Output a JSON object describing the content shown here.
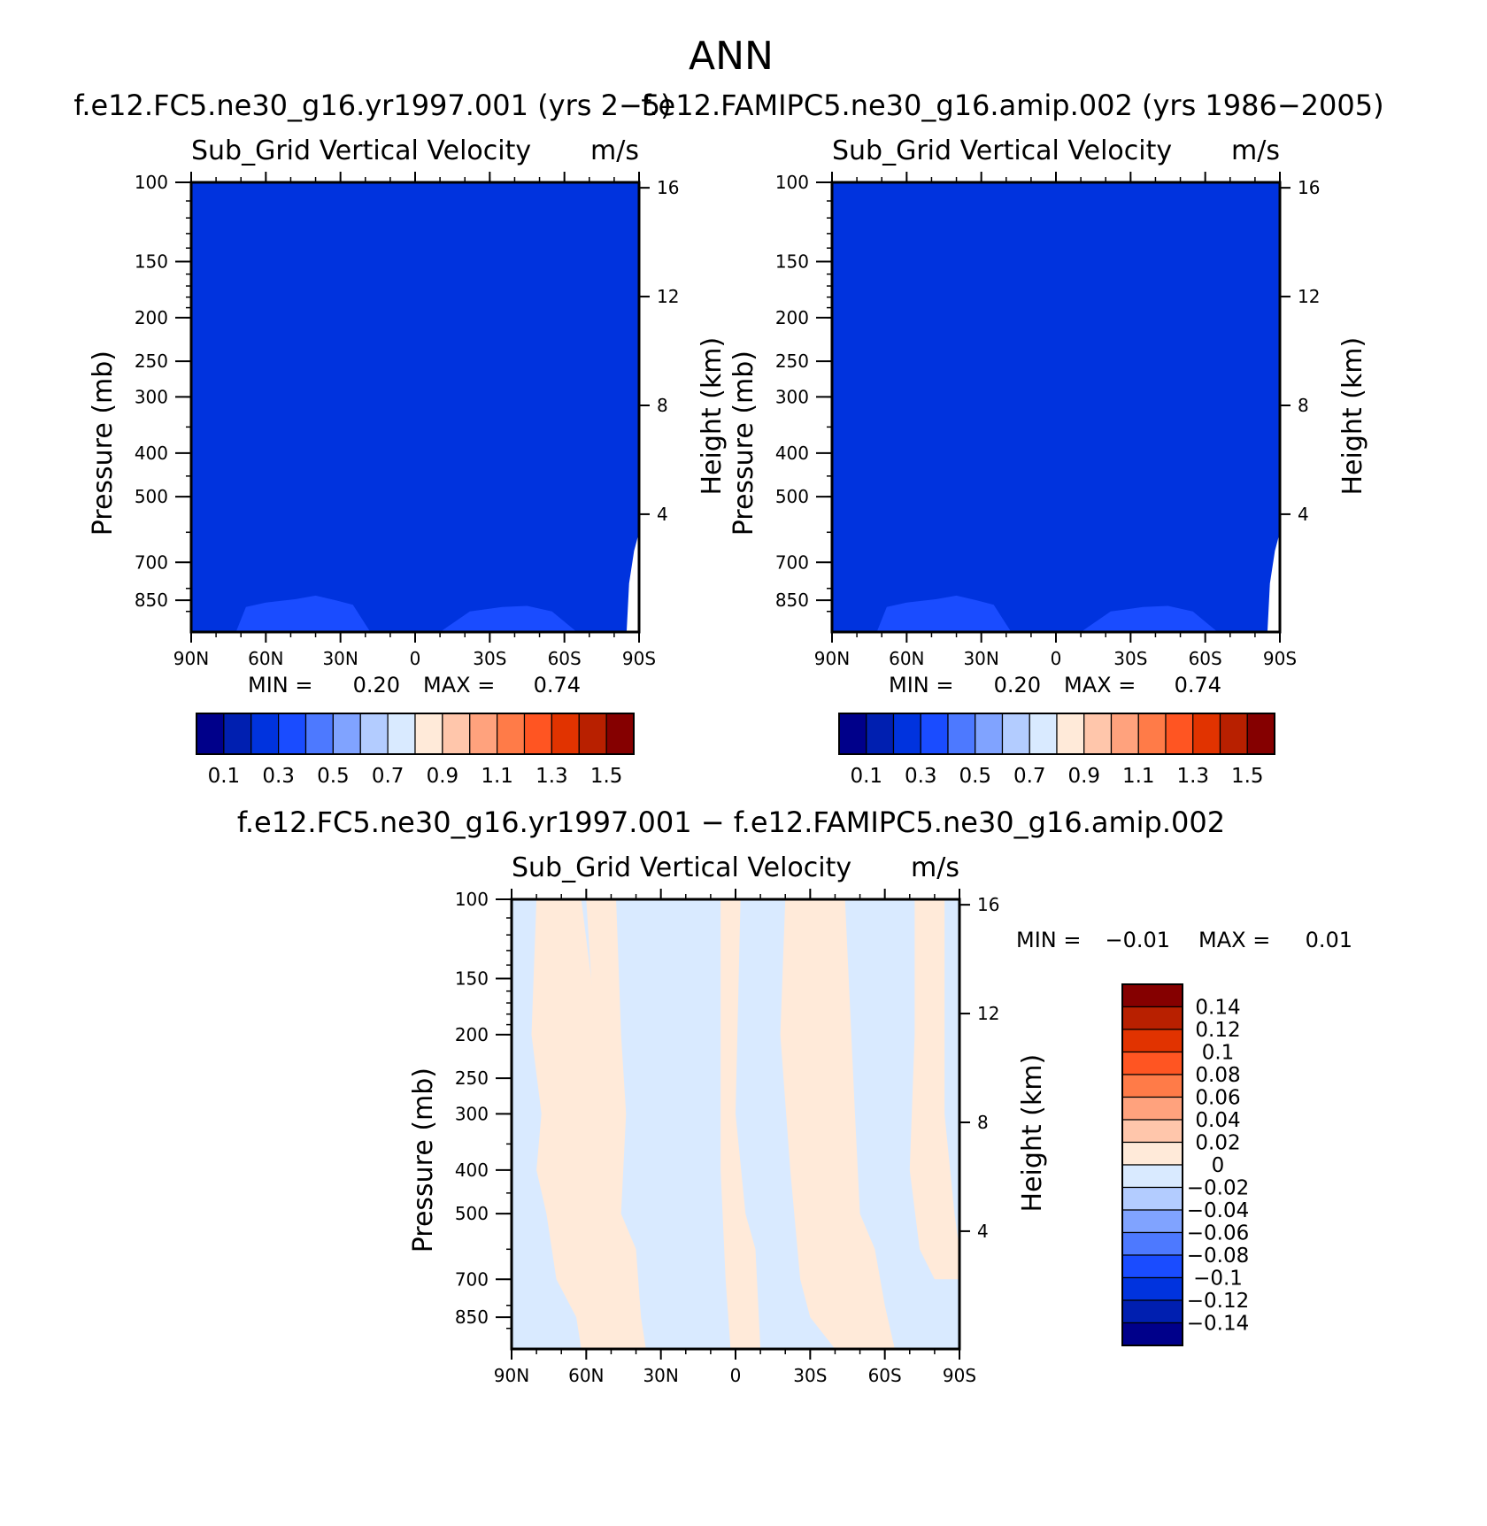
{
  "main_title": "ANN",
  "chart_data": [
    {
      "type": "heatmap",
      "case_title": "f.e12.FC5.ne30_g16.yr1997.001 (yrs 2−5)",
      "var_label": "Sub_Grid Vertical Velocity",
      "units": "m/s",
      "ylabel": "Pressure (mb)",
      "ylabel_right": "Height (km)",
      "x_ticks": [
        "90N",
        "60N",
        "30N",
        "0",
        "30S",
        "60S",
        "90S"
      ],
      "x_values": [
        90,
        60,
        30,
        0,
        -30,
        -60,
        -90
      ],
      "y_ticks": [
        "100",
        "150",
        "200",
        "250",
        "300",
        "400",
        "500",
        "700",
        "850"
      ],
      "y_values": [
        100,
        150,
        200,
        250,
        300,
        400,
        500,
        700,
        850
      ],
      "ylim": [
        100,
        1000
      ],
      "y_scale": "log",
      "height_ticks": [
        "16",
        "12",
        "8",
        "4"
      ],
      "height_values": [
        16,
        12,
        8,
        4
      ],
      "min_label": "MIN =",
      "min_value": "0.20",
      "max_label": "MAX =",
      "max_value": "0.74",
      "colorbar": {
        "orientation": "horizontal",
        "labels": [
          "0.1",
          "0.3",
          "0.5",
          "0.7",
          "0.9",
          "1.1",
          "1.3",
          "1.5"
        ],
        "colors": [
          "#00008a",
          "#001fb0",
          "#0033de",
          "#1a4cff",
          "#4d79ff",
          "#80a3ff",
          "#b3ccff",
          "#d9eaff",
          "#ffead9",
          "#ffc6ab",
          "#ffa27d",
          "#ff7b48",
          "#ff5522",
          "#e13300",
          "#b82000",
          "#850000"
        ]
      }
    },
    {
      "type": "heatmap",
      "case_title": "f.e12.FAMIPC5.ne30_g16.amip.002 (yrs 1986−2005)",
      "var_label": "Sub_Grid Vertical Velocity",
      "units": "m/s",
      "ylabel": "Pressure (mb)",
      "ylabel_right": "Height (km)",
      "x_ticks": [
        "90N",
        "60N",
        "30N",
        "0",
        "30S",
        "60S",
        "90S"
      ],
      "x_values": [
        90,
        60,
        30,
        0,
        -30,
        -60,
        -90
      ],
      "y_ticks": [
        "100",
        "150",
        "200",
        "250",
        "300",
        "400",
        "500",
        "700",
        "850"
      ],
      "y_values": [
        100,
        150,
        200,
        250,
        300,
        400,
        500,
        700,
        850
      ],
      "ylim": [
        100,
        1000
      ],
      "y_scale": "log",
      "height_ticks": [
        "16",
        "12",
        "8",
        "4"
      ],
      "height_values": [
        16,
        12,
        8,
        4
      ],
      "min_label": "MIN =",
      "min_value": "0.20",
      "max_label": "MAX =",
      "max_value": "0.74",
      "colorbar": {
        "orientation": "horizontal",
        "labels": [
          "0.1",
          "0.3",
          "0.5",
          "0.7",
          "0.9",
          "1.1",
          "1.3",
          "1.5"
        ],
        "colors": [
          "#00008a",
          "#001fb0",
          "#0033de",
          "#1a4cff",
          "#4d79ff",
          "#80a3ff",
          "#b3ccff",
          "#d9eaff",
          "#ffead9",
          "#ffc6ab",
          "#ffa27d",
          "#ff7b48",
          "#ff5522",
          "#e13300",
          "#b82000",
          "#850000"
        ]
      }
    },
    {
      "type": "heatmap",
      "case_title": "f.e12.FC5.ne30_g16.yr1997.001 − f.e12.FAMIPC5.ne30_g16.amip.002",
      "var_label": "Sub_Grid Vertical Velocity",
      "units": "m/s",
      "ylabel": "Pressure (mb)",
      "ylabel_right": "Height (km)",
      "x_ticks": [
        "90N",
        "60N",
        "30N",
        "0",
        "30S",
        "60S",
        "90S"
      ],
      "x_values": [
        90,
        60,
        30,
        0,
        -30,
        -60,
        -90
      ],
      "y_ticks": [
        "100",
        "150",
        "200",
        "250",
        "300",
        "400",
        "500",
        "700",
        "850"
      ],
      "y_values": [
        100,
        150,
        200,
        250,
        300,
        400,
        500,
        700,
        850
      ],
      "ylim": [
        100,
        1000
      ],
      "y_scale": "log",
      "height_ticks": [
        "16",
        "12",
        "8",
        "4"
      ],
      "height_values": [
        16,
        12,
        8,
        4
      ],
      "min_label": "MIN =",
      "min_value": "−0.01",
      "max_label": "MAX =",
      "max_value": "0.01",
      "colorbar": {
        "orientation": "vertical",
        "labels": [
          "0.14",
          "0.12",
          "0.1",
          "0.08",
          "0.06",
          "0.04",
          "0.02",
          "0",
          "−0.02",
          "−0.04",
          "−0.06",
          "−0.08",
          "−0.1",
          "−0.12",
          "−0.14"
        ],
        "colors": [
          "#850000",
          "#b82000",
          "#e13300",
          "#ff5522",
          "#ff7b48",
          "#ffa27d",
          "#ffc6ab",
          "#ffead9",
          "#d9eaff",
          "#b3ccff",
          "#80a3ff",
          "#4d79ff",
          "#1a4cff",
          "#0033de",
          "#001fb0",
          "#00008a"
        ]
      }
    }
  ]
}
